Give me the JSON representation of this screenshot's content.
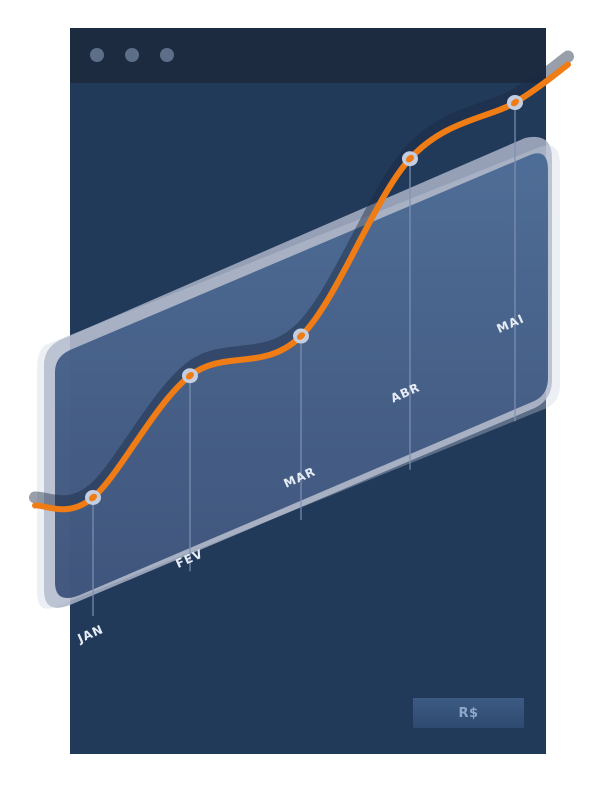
{
  "window": {
    "title_dots": [
      "dot-1",
      "dot-2",
      "dot-3"
    ]
  },
  "currency_button": {
    "label": "R$"
  },
  "chart_data": {
    "type": "line",
    "title": "",
    "xlabel": "",
    "ylabel": "",
    "categories": [
      "JAN",
      "FEV",
      "MAR",
      "ABR",
      "MAI"
    ],
    "series": [
      {
        "name": "R$",
        "values": [
          10,
          30,
          27,
          60,
          62
        ]
      }
    ],
    "ylim": [
      0,
      70
    ],
    "grid": false,
    "colors": {
      "line": "#f07c15",
      "point_fill": "#f07c15",
      "point_ring": "#c5cde0",
      "panel": "#3e5d87",
      "panel_back": "#b8c2d4",
      "drop_line": "#7f91b2"
    }
  }
}
